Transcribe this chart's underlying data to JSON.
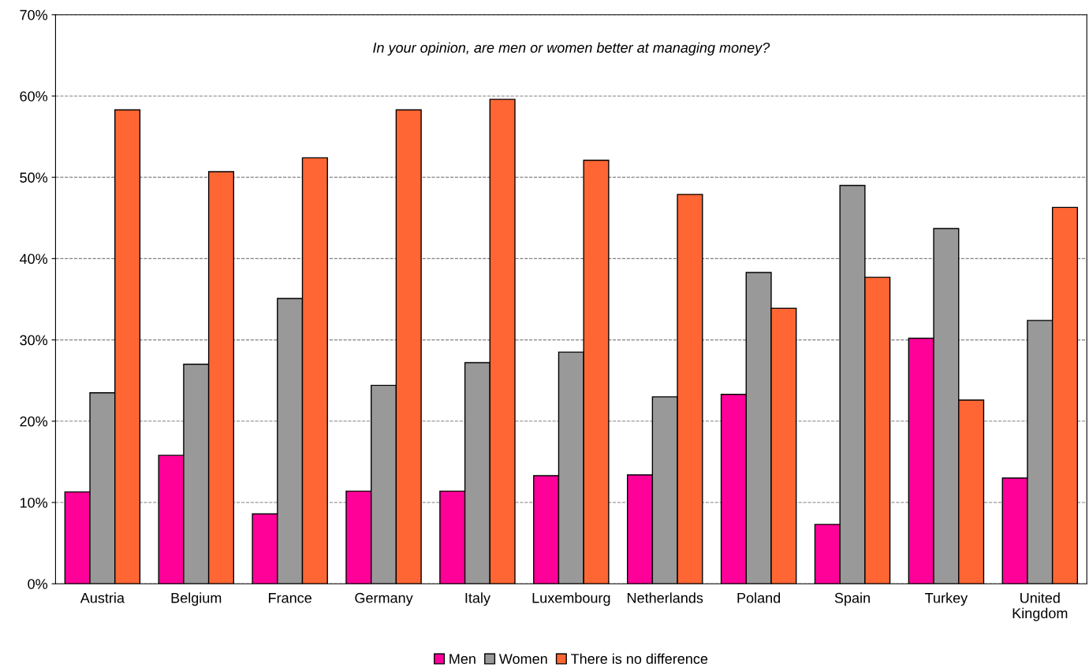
{
  "chart_data": {
    "type": "bar",
    "title": "In your opinion, are men or women better at managing money?",
    "categories": [
      "Austria",
      "Belgium",
      "France",
      "Germany",
      "Italy",
      "Luxembourg",
      "Netherlands",
      "Poland",
      "Spain",
      "Turkey",
      "United Kingdom"
    ],
    "series": [
      {
        "name": "Men",
        "color": "#ff0099",
        "values": [
          11.3,
          15.8,
          8.6,
          11.4,
          11.4,
          13.3,
          13.4,
          23.3,
          7.3,
          30.2,
          13.0
        ]
      },
      {
        "name": "Women",
        "color": "#999999",
        "values": [
          23.5,
          27.0,
          35.1,
          24.4,
          27.2,
          28.5,
          23.0,
          38.3,
          49.0,
          43.7,
          32.4
        ]
      },
      {
        "name": "There is no difference",
        "color": "#ff6633",
        "values": [
          58.3,
          50.7,
          52.4,
          58.3,
          59.6,
          52.1,
          47.9,
          33.9,
          37.7,
          22.6,
          46.3
        ]
      }
    ],
    "ylim": [
      0,
      70
    ],
    "yticks": [
      {
        "value": 0,
        "label": "0%"
      },
      {
        "value": 10,
        "label": "10%"
      },
      {
        "value": 20,
        "label": "20%"
      },
      {
        "value": 30,
        "label": "30%"
      },
      {
        "value": 40,
        "label": "40%"
      },
      {
        "value": 50,
        "label": "50%"
      },
      {
        "value": 60,
        "label": "60%"
      },
      {
        "value": 70,
        "label": "70%"
      }
    ],
    "grid": "y",
    "legend": "bottom"
  }
}
